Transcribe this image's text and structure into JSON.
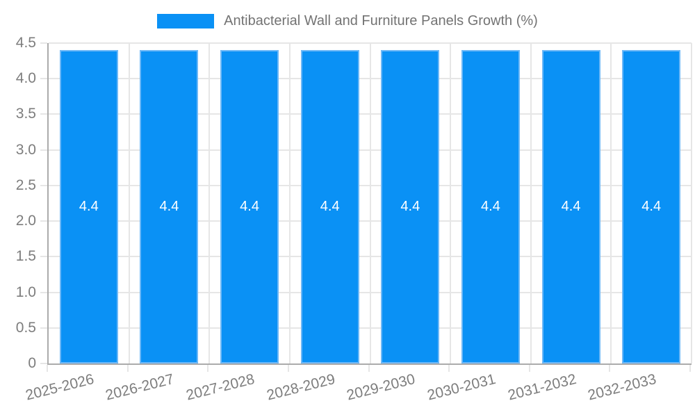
{
  "legend": {
    "label": "Antibacterial Wall and Furniture Panels Growth (%)"
  },
  "colors": {
    "background": "#ffffff",
    "bar_fill": "#0a91f5",
    "bar_border": "#6db8f7",
    "grid_line": "#e6e6e6",
    "axis_line": "#ababab",
    "tick_label_text": "#7d7d7d",
    "legend_text": "#737373",
    "value_label_text": "#ffffff"
  },
  "chart_data": {
    "type": "bar",
    "title": "Antibacterial Wall and Furniture Panels Growth (%)",
    "categories": [
      "2025-2026",
      "2026-2027",
      "2027-2028",
      "2028-2029",
      "2029-2030",
      "2030-2031",
      "2031-2032",
      "2032-2033"
    ],
    "values": [
      4.4,
      4.4,
      4.4,
      4.4,
      4.4,
      4.4,
      4.4,
      4.4
    ],
    "value_labels": [
      "4.4",
      "4.4",
      "4.4",
      "4.4",
      "4.4",
      "4.4",
      "4.4",
      "4.4"
    ],
    "xlabel": "",
    "ylabel": "",
    "ylim": [
      0,
      4.5
    ],
    "ytick_labels": [
      "0",
      "0.5",
      "1.0",
      "1.5",
      "2.0",
      "2.5",
      "3.0",
      "3.5",
      "4.0",
      "4.5"
    ],
    "grid": true,
    "legend_position": "top",
    "value_labels_position": "center"
  }
}
